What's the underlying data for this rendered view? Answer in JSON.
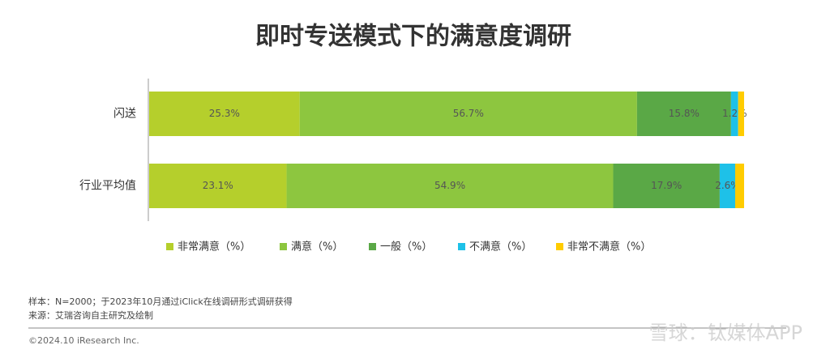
{
  "chart_data": {
    "type": "stacked-barh",
    "title": "即时专送模式下的满意度调研",
    "categories": [
      "闪送",
      "行业平均值"
    ],
    "series": [
      {
        "name": "非常满意（%）",
        "color": "#b5cf2c",
        "values": [
          25.3,
          23.1
        ],
        "value_labels": [
          "25.3%",
          "23.1%"
        ]
      },
      {
        "name": "满意（%）",
        "color": "#8dc63f",
        "values": [
          56.7,
          54.9
        ],
        "value_labels": [
          "56.7%",
          "54.9%"
        ]
      },
      {
        "name": "一般（%）",
        "color": "#5aa846",
        "values": [
          15.8,
          17.9
        ],
        "value_labels": [
          "15.8%",
          "17.9%"
        ]
      },
      {
        "name": "不满意（%）",
        "color": "#1ec1e8",
        "values": [
          1.2,
          2.6
        ],
        "value_labels": [
          "1.2%",
          "2.6%"
        ]
      },
      {
        "name": "非常不满意（%）",
        "color": "#ffcc00",
        "values": [
          1.0,
          1.5
        ],
        "value_labels": [
          null,
          null
        ]
      }
    ],
    "xlim": [
      0,
      100
    ],
    "notes": [
      "样本：N=2000；于2023年10月通过iClick在线调研形式调研获得",
      "来源：艾瑞咨询自主研究及绘制"
    ],
    "copyright": "©2024.10 iResearch Inc.",
    "watermark": "雪球：钛媒体APP"
  }
}
